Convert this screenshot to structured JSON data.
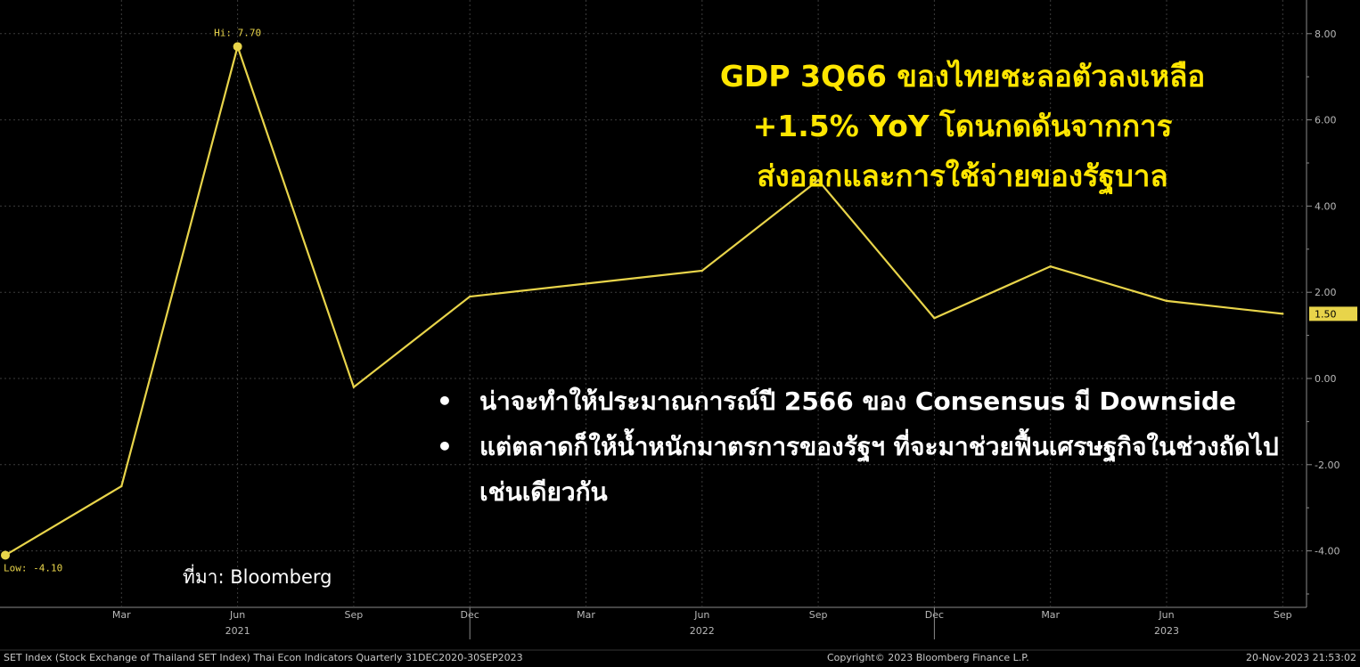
{
  "chart_data": {
    "type": "line",
    "title": "GDP 3Q66 ของไทยชะลอตัวลงเหลือ +1.5% YoY โดนกดดันจากการส่งออกและการใช้จ่ายของรัฐบาล",
    "x": [
      "Dec 2020",
      "Mar 2021",
      "Jun 2021",
      "Sep 2021",
      "Dec 2021",
      "Mar 2022",
      "Jun 2022",
      "Sep 2022",
      "Dec 2022",
      "Mar 2023",
      "Jun 2023",
      "Sep 2023"
    ],
    "values": [
      -4.1,
      -2.5,
      7.7,
      -0.2,
      1.9,
      2.2,
      2.5,
      4.6,
      1.4,
      2.6,
      1.8,
      1.5
    ],
    "ylim": [
      -5.3,
      8.9
    ],
    "y_ticks": [
      "-4.00",
      "-2.00",
      "0.00",
      "2.00",
      "4.00",
      "6.00",
      "8.00"
    ],
    "x_tick_labels": [
      "Mar",
      "Jun",
      "Sep",
      "Dec",
      "Mar",
      "Jun",
      "Sep",
      "Dec",
      "Mar",
      "Jun",
      "Sep"
    ],
    "year_labels": [
      "2021",
      "2022",
      "2023"
    ],
    "hi_label": "Hi: 7.70",
    "low_label": "Low: -4.10",
    "last_value_label": "1.50",
    "line_color": "#e8d44a",
    "grid": true,
    "y_axis_position": "right"
  },
  "title_lines": [
    "GDP 3Q66 ของไทยชะลอตัวลงเหลือ",
    "+1.5% YoY โดนกดดันจากการ",
    "ส่งออกและการใช้จ่ายของรัฐบาล"
  ],
  "bullets": [
    {
      "marker": "•",
      "text": "น่าจะทำให้ประมาณการณ์ปี 2566 ของ Consensus มี Downside"
    },
    {
      "marker": "•",
      "text": "แต่ตลาดก็ให้น้ำหนักมาตรการของรัฐฯ ที่จะมาช่วยฟื้นเศรษฐกิจในช่วงถัดไปเช่นเดียวกัน"
    }
  ],
  "source": "ที่มา: Bloomberg",
  "footer": {
    "left": "SET Index (Stock Exchange of Thailand SET Index) Thai Econ Indicators  Quarterly 31DEC2020-30SEP2023",
    "center": "Copyright© 2023 Bloomberg Finance L.P.",
    "right": "20-Nov-2023 21:53:02"
  }
}
